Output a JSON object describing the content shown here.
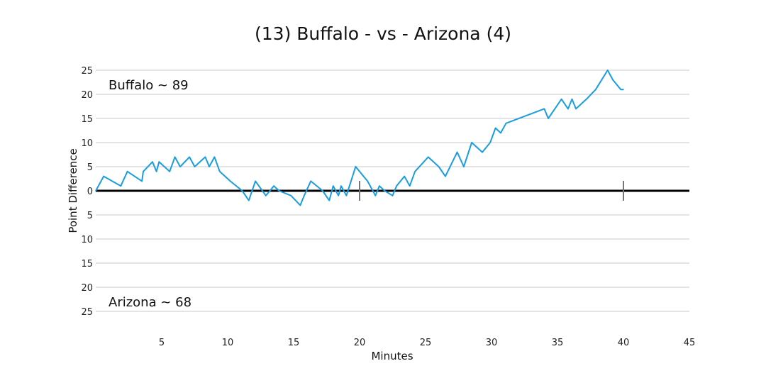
{
  "chart_data": {
    "type": "line",
    "title": "(13) Buffalo - vs - Arizona (4)",
    "xlabel": "Minutes",
    "ylabel": "Point Difference",
    "xlim": [
      0,
      45
    ],
    "ylim": [
      -25,
      25
    ],
    "x_ticks": [
      5,
      10,
      15,
      20,
      25,
      30,
      35,
      40,
      45
    ],
    "y_ticks": [
      25,
      20,
      15,
      10,
      5,
      0,
      -5,
      -10,
      -15,
      -20,
      -25
    ],
    "y_tick_labels": [
      "25",
      "20",
      "15",
      "10",
      "5",
      "0",
      "5",
      "10",
      "15",
      "20",
      "25"
    ],
    "grid": "horizontal",
    "line_color": "#1a9de0",
    "zero_line_color": "#000000",
    "half_markers_x": [
      20,
      40
    ],
    "annotations": {
      "top_team": "Buffalo ~ 89",
      "bottom_team": "Arizona ~ 68"
    },
    "series": [
      {
        "x": [
          0,
          0.6,
          1.9,
          2.4,
          3.5,
          3.6,
          4.3,
          4.6,
          4.8,
          5.6,
          6.0,
          6.4,
          7.1,
          7.5,
          8.3,
          8.6,
          9.0,
          9.4,
          10.2,
          11.1,
          11.6,
          12.1,
          12.9,
          13.5,
          13.9,
          14.8,
          15.5,
          15.8,
          16.3,
          17.2,
          17.7,
          18.0,
          18.4,
          18.6,
          19.0,
          19.7,
          20.3,
          20.6,
          21.2,
          21.5,
          21.9,
          22.5,
          22.8,
          23.4,
          23.8,
          24.2,
          25.2,
          26.0,
          26.5,
          27.4,
          27.9,
          28.5,
          29.3,
          29.9,
          30.3,
          30.7,
          31.1,
          34.0,
          34.3,
          34.8,
          35.3,
          35.8,
          36.1,
          36.4,
          37.2,
          37.9,
          38.8,
          39.2,
          39.8,
          40.0
        ],
        "y": [
          0,
          3,
          1,
          4,
          2,
          4,
          6,
          4,
          6,
          4,
          7,
          5,
          7,
          5,
          7,
          5,
          7,
          4,
          2,
          0,
          -2,
          2,
          -1,
          1,
          0,
          -1,
          -3,
          -1,
          2,
          0,
          -2,
          1,
          -1,
          1,
          -1,
          5,
          3,
          2,
          -1,
          1,
          0,
          -1,
          1,
          3,
          1,
          4,
          7,
          5,
          3,
          8,
          5,
          10,
          8,
          10,
          13,
          12,
          14,
          17,
          15,
          17,
          19,
          17,
          19,
          17,
          19,
          21,
          25,
          23,
          21,
          21
        ]
      }
    ]
  }
}
